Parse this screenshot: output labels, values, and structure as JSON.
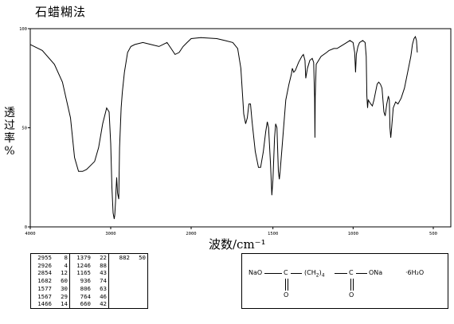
{
  "title": "石蜡糊法",
  "chart_data": {
    "type": "line",
    "title": "石蜡糊法",
    "ylabel": "透过率%",
    "xlabel": "波数/cm⁻¹",
    "xlim": [
      4000,
      500
    ],
    "ylim": [
      0,
      100
    ],
    "xticks": [
      "4000",
      "3000",
      "2000",
      "1500",
      "1000",
      "500"
    ],
    "yticks": [
      "100",
      "50",
      "0"
    ],
    "series": [
      {
        "points": [
          [
            4000,
            92
          ],
          [
            3850,
            89
          ],
          [
            3700,
            82
          ],
          [
            3600,
            73
          ],
          [
            3500,
            55
          ],
          [
            3450,
            35
          ],
          [
            3400,
            28
          ],
          [
            3350,
            28
          ],
          [
            3300,
            29
          ],
          [
            3250,
            31
          ],
          [
            3200,
            33
          ],
          [
            3150,
            40
          ],
          [
            3100,
            52
          ],
          [
            3050,
            60
          ],
          [
            3020,
            58
          ],
          [
            3000,
            42
          ],
          [
            2985,
            20
          ],
          [
            2970,
            7
          ],
          [
            2956,
            4
          ],
          [
            2950,
            6
          ],
          [
            2940,
            13
          ],
          [
            2935,
            18
          ],
          [
            2926,
            25
          ],
          [
            2915,
            17
          ],
          [
            2900,
            14
          ],
          [
            2890,
            40
          ],
          [
            2870,
            60
          ],
          [
            2855,
            68
          ],
          [
            2830,
            78
          ],
          [
            2790,
            88
          ],
          [
            2750,
            91
          ],
          [
            2700,
            92
          ],
          [
            2600,
            93
          ],
          [
            2500,
            92
          ],
          [
            2400,
            91
          ],
          [
            2300,
            93
          ],
          [
            2250,
            90
          ],
          [
            2200,
            87
          ],
          [
            2150,
            88
          ],
          [
            2100,
            91
          ],
          [
            2050,
            93
          ],
          [
            2000,
            95
          ],
          [
            1950,
            95.5
          ],
          [
            1850,
            95
          ],
          [
            1800,
            94
          ],
          [
            1750,
            93
          ],
          [
            1720,
            90
          ],
          [
            1700,
            80
          ],
          [
            1682,
            57
          ],
          [
            1670,
            52
          ],
          [
            1660,
            55
          ],
          [
            1650,
            62
          ],
          [
            1640,
            62
          ],
          [
            1630,
            53
          ],
          [
            1610,
            38
          ],
          [
            1590,
            30
          ],
          [
            1577,
            30
          ],
          [
            1560,
            38
          ],
          [
            1545,
            48
          ],
          [
            1535,
            53
          ],
          [
            1527,
            50
          ],
          [
            1515,
            32
          ],
          [
            1507,
            16
          ],
          [
            1500,
            24
          ],
          [
            1490,
            45
          ],
          [
            1483,
            52
          ],
          [
            1475,
            50
          ],
          [
            1466,
            28
          ],
          [
            1460,
            24
          ],
          [
            1455,
            28
          ],
          [
            1445,
            38
          ],
          [
            1420,
            64
          ],
          [
            1400,
            72
          ],
          [
            1385,
            77
          ],
          [
            1379,
            80
          ],
          [
            1370,
            78
          ],
          [
            1360,
            79
          ],
          [
            1340,
            83
          ],
          [
            1320,
            86
          ],
          [
            1310,
            87
          ],
          [
            1300,
            84
          ],
          [
            1295,
            75
          ],
          [
            1285,
            80
          ],
          [
            1270,
            84
          ],
          [
            1255,
            85
          ],
          [
            1246,
            83
          ],
          [
            1240,
            65
          ],
          [
            1238,
            45
          ],
          [
            1236,
            66
          ],
          [
            1230,
            82
          ],
          [
            1200,
            86
          ],
          [
            1165,
            88
          ],
          [
            1150,
            89
          ],
          [
            1120,
            90
          ],
          [
            1100,
            90
          ],
          [
            1080,
            91
          ],
          [
            1060,
            92
          ],
          [
            1040,
            93
          ],
          [
            1020,
            94
          ],
          [
            1000,
            93
          ],
          [
            990,
            88
          ],
          [
            985,
            78
          ],
          [
            980,
            87
          ],
          [
            970,
            91
          ],
          [
            960,
            93
          ],
          [
            940,
            94
          ],
          [
            925,
            93
          ],
          [
            918,
            86
          ],
          [
            914,
            66
          ],
          [
            910,
            60
          ],
          [
            906,
            64
          ],
          [
            890,
            62
          ],
          [
            880,
            61
          ],
          [
            870,
            64
          ],
          [
            860,
            68
          ],
          [
            850,
            72
          ],
          [
            840,
            73
          ],
          [
            830,
            72
          ],
          [
            820,
            70
          ],
          [
            808,
            58
          ],
          [
            800,
            56
          ],
          [
            790,
            62
          ],
          [
            780,
            66
          ],
          [
            774,
            64
          ],
          [
            770,
            50
          ],
          [
            765,
            45
          ],
          [
            760,
            50
          ],
          [
            750,
            60
          ],
          [
            735,
            63
          ],
          [
            720,
            62
          ],
          [
            700,
            65
          ],
          [
            680,
            70
          ],
          [
            660,
            78
          ],
          [
            640,
            86
          ],
          [
            630,
            92
          ],
          [
            620,
            95
          ],
          [
            612,
            96
          ],
          [
            605,
            94
          ],
          [
            600,
            88
          ]
        ]
      }
    ]
  },
  "peak_table": [
    [
      [
        "2955",
        "8"
      ],
      [
        "2926",
        "4"
      ],
      [
        "2854",
        "12"
      ],
      [
        "1682",
        "60"
      ],
      [
        "1577",
        "30"
      ],
      [
        "1567",
        "29"
      ],
      [
        "1466",
        "14"
      ]
    ],
    [
      [
        "1379",
        "22"
      ],
      [
        "1246",
        "88"
      ],
      [
        "1165",
        "43"
      ],
      [
        "936",
        "74"
      ],
      [
        "806",
        "63"
      ],
      [
        "764",
        "46"
      ],
      [
        "660",
        "42"
      ]
    ],
    [
      [
        "882",
        "50"
      ]
    ]
  ],
  "structure": {
    "left": "NaO",
    "c1": "C",
    "chain": "(CH",
    "sub": "2",
    "close": ")",
    "n": "4",
    "c2": "C",
    "right": "ONa",
    "o1": "O",
    "o2": "O",
    "hydrate": "·6H₂O"
  }
}
